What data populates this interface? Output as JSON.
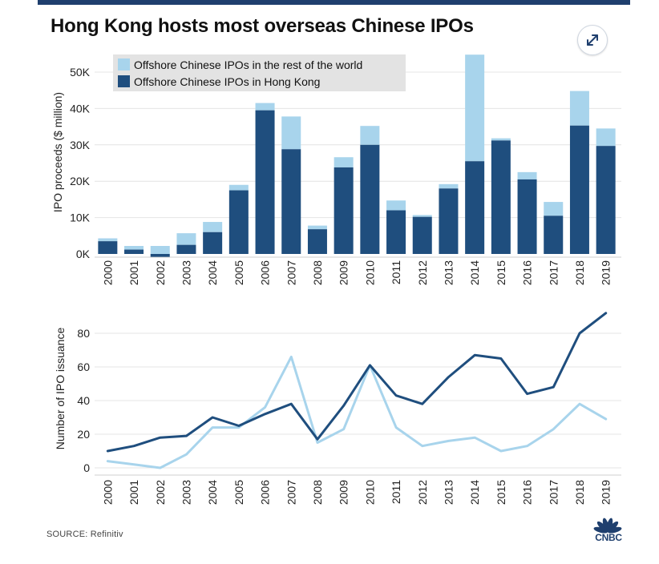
{
  "title": "Hong Kong hosts most overseas Chinese IPOs",
  "source": "SOURCE: Refinitiv",
  "logo_text": "CNBC",
  "icons": {
    "expand": "expand-arrows-icon",
    "logo": "cnbc-peacock-icon"
  },
  "colors": {
    "hong_kong": "#1f4e7e",
    "rest_of_world": "#a8d4ec",
    "topbar": "#1f3f6e"
  },
  "chart_data": [
    {
      "type": "bar",
      "stacked": true,
      "categories": [
        "2000",
        "2001",
        "2002",
        "2003",
        "2004",
        "2005",
        "2006",
        "2007",
        "2008",
        "2009",
        "2010",
        "2011",
        "2012",
        "2013",
        "2014",
        "2015",
        "2016",
        "2017",
        "2018",
        "2019"
      ],
      "series": [
        {
          "name": "Offshore Chinese IPOs in Hong Kong",
          "color": "#1f4e7e",
          "values": [
            3.5,
            1.2,
            -0.8,
            2.5,
            6,
            17.5,
            39.5,
            28.8,
            6.8,
            23.8,
            30,
            12,
            10.2,
            18,
            25.5,
            31.2,
            20.5,
            10.5,
            35.3,
            29.7
          ]
        },
        {
          "name": "Offshore Chinese IPOs in the rest of the world",
          "color": "#a8d4ec",
          "values": [
            0.8,
            1,
            2.2,
            3.2,
            2.8,
            1.5,
            2,
            9,
            1,
            2.8,
            5.2,
            2.7,
            0.5,
            1.2,
            29.3,
            0.6,
            2,
            3.8,
            9.5,
            4.8
          ]
        }
      ],
      "ylabel": "IPO proceeds ($ million)",
      "yticks": [
        "0K",
        "10K",
        "20K",
        "30K",
        "40K",
        "50K"
      ],
      "ylim": [
        0,
        55
      ],
      "legend": "top-left"
    },
    {
      "type": "line",
      "categories": [
        "2000",
        "2001",
        "2002",
        "2003",
        "2004",
        "2005",
        "2006",
        "2007",
        "2008",
        "2009",
        "2010",
        "2011",
        "2012",
        "2013",
        "2014",
        "2015",
        "2016",
        "2017",
        "2018",
        "2019"
      ],
      "series": [
        {
          "name": "Hong Kong",
          "color": "#1f4e7e",
          "values": [
            10,
            13,
            18,
            19,
            30,
            25,
            32,
            38,
            17,
            37,
            61,
            43,
            38,
            54,
            67,
            65,
            44,
            48,
            80,
            92
          ]
        },
        {
          "name": "Rest of the world",
          "color": "#a8d4ec",
          "values": [
            4,
            2,
            0,
            8,
            24,
            24,
            36,
            66,
            15,
            23,
            61,
            24,
            13,
            16,
            18,
            10,
            13,
            23,
            38,
            29
          ]
        }
      ],
      "ylabel": "Number of IPO issuance",
      "yticks": [
        "0",
        "20",
        "40",
        "60",
        "80"
      ],
      "ylim": [
        0,
        100
      ]
    }
  ]
}
